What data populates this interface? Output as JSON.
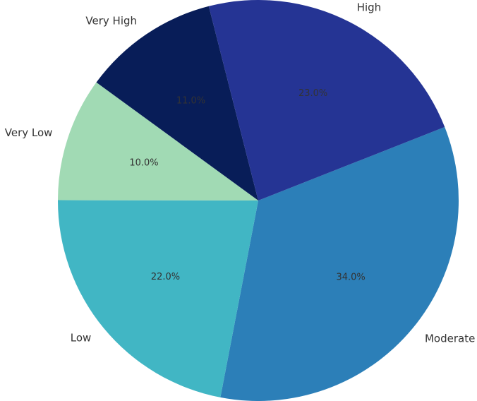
{
  "chart_data": {
    "type": "pie",
    "title": "",
    "slices": [
      {
        "label": "Moderate",
        "value": 34.0,
        "pct_label": "34.0%",
        "color": "#2c7fb8"
      },
      {
        "label": "Low",
        "value": 22.0,
        "pct_label": "22.0%",
        "color": "#41b6c4"
      },
      {
        "label": "Very Low",
        "value": 10.0,
        "pct_label": "10.0%",
        "color": "#a1dab4"
      },
      {
        "label": "Very High",
        "value": 11.0,
        "pct_label": "11.0%",
        "color": "#081d58"
      },
      {
        "label": "High",
        "value": 23.0,
        "pct_label": "23.0%",
        "color": "#253494"
      }
    ],
    "legend": "none",
    "grid": false
  }
}
